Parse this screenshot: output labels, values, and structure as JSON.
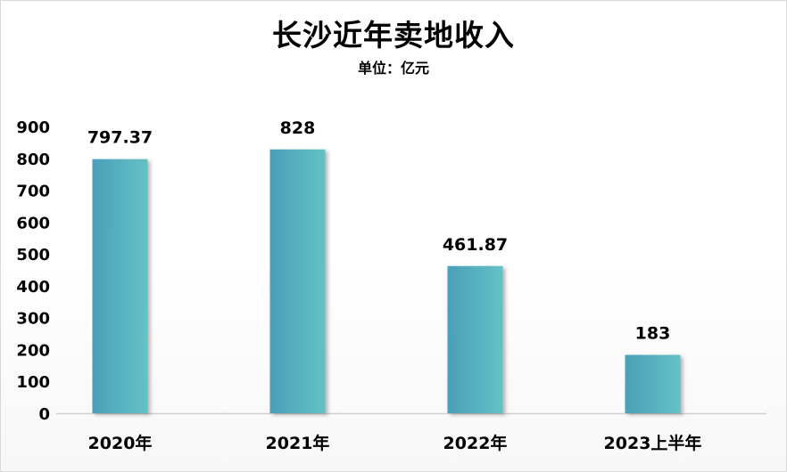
{
  "chart_data": {
    "type": "bar",
    "title": "长沙近年卖地收入",
    "subtitle": "单位：亿元",
    "xlabel": "",
    "ylabel": "",
    "categories": [
      "2020年",
      "2021年",
      "2022年",
      "2023上半年"
    ],
    "values": [
      797.37,
      828,
      461.87,
      183
    ],
    "data_labels": [
      "797.37",
      "828",
      "461.87",
      "183"
    ],
    "yticks": [
      "0",
      "100",
      "200",
      "300",
      "400",
      "500",
      "600",
      "700",
      "800",
      "900"
    ],
    "ylim": [
      0,
      900
    ],
    "grid": false,
    "legend": "none",
    "colors": {
      "bar_left": "#4a9fb8",
      "bar_right": "#63c2c4",
      "axis": "#d0d0d0"
    }
  }
}
